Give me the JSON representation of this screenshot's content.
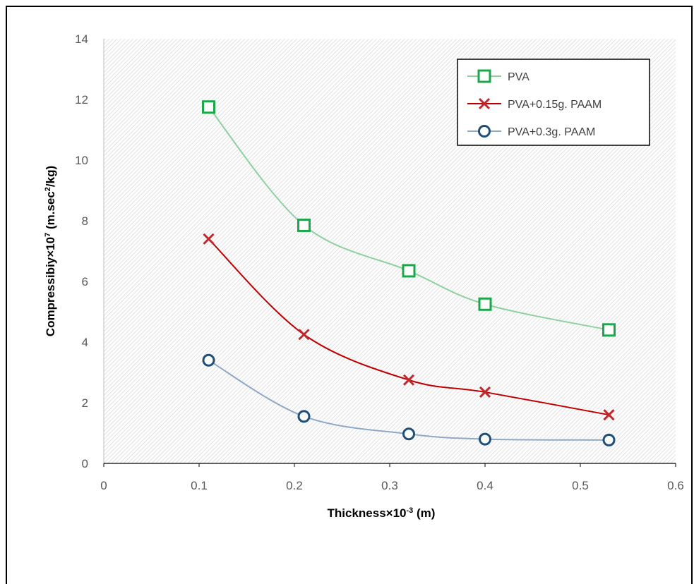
{
  "chart_data": {
    "type": "line",
    "title": "",
    "xlabel": {
      "main": "Thickness×10",
      "sup": "-3",
      "tail": " (m)"
    },
    "ylabel": {
      "main": "Compressibiy×10",
      "sup": "7",
      "mid": " (m.sec",
      "sup2": "2",
      "tail": "/kg)"
    },
    "xlim": [
      0,
      0.6
    ],
    "ylim": [
      0,
      14
    ],
    "x_ticks": [
      "0",
      "0.1",
      "0.2",
      "0.3",
      "0.4",
      "0.5",
      "0.6"
    ],
    "y_ticks": [
      "0",
      "2",
      "4",
      "6",
      "8",
      "10",
      "12",
      "14"
    ],
    "x": [
      0.11,
      0.21,
      0.32,
      0.4,
      0.53
    ],
    "grid": false,
    "background": "diagonal-hatch",
    "legend_position": "top-right",
    "series": [
      {
        "name": "PVA",
        "values": [
          11.75,
          7.85,
          6.35,
          5.25,
          4.4
        ],
        "marker": "square",
        "line_color": "#8fd19e",
        "marker_color": "#1aa84a"
      },
      {
        "name": "PVA+0.15g. PAAM",
        "values": [
          7.4,
          4.25,
          2.75,
          2.35,
          1.6
        ],
        "marker": "x",
        "line_color": "#c00000",
        "marker_color": "#c0282d"
      },
      {
        "name": "PVA+0.3g. PAAM",
        "values": [
          3.4,
          1.55,
          0.97,
          0.8,
          0.77
        ],
        "marker": "circle",
        "line_color": "#8ea9c8",
        "marker_color": "#1f4e79"
      }
    ]
  }
}
